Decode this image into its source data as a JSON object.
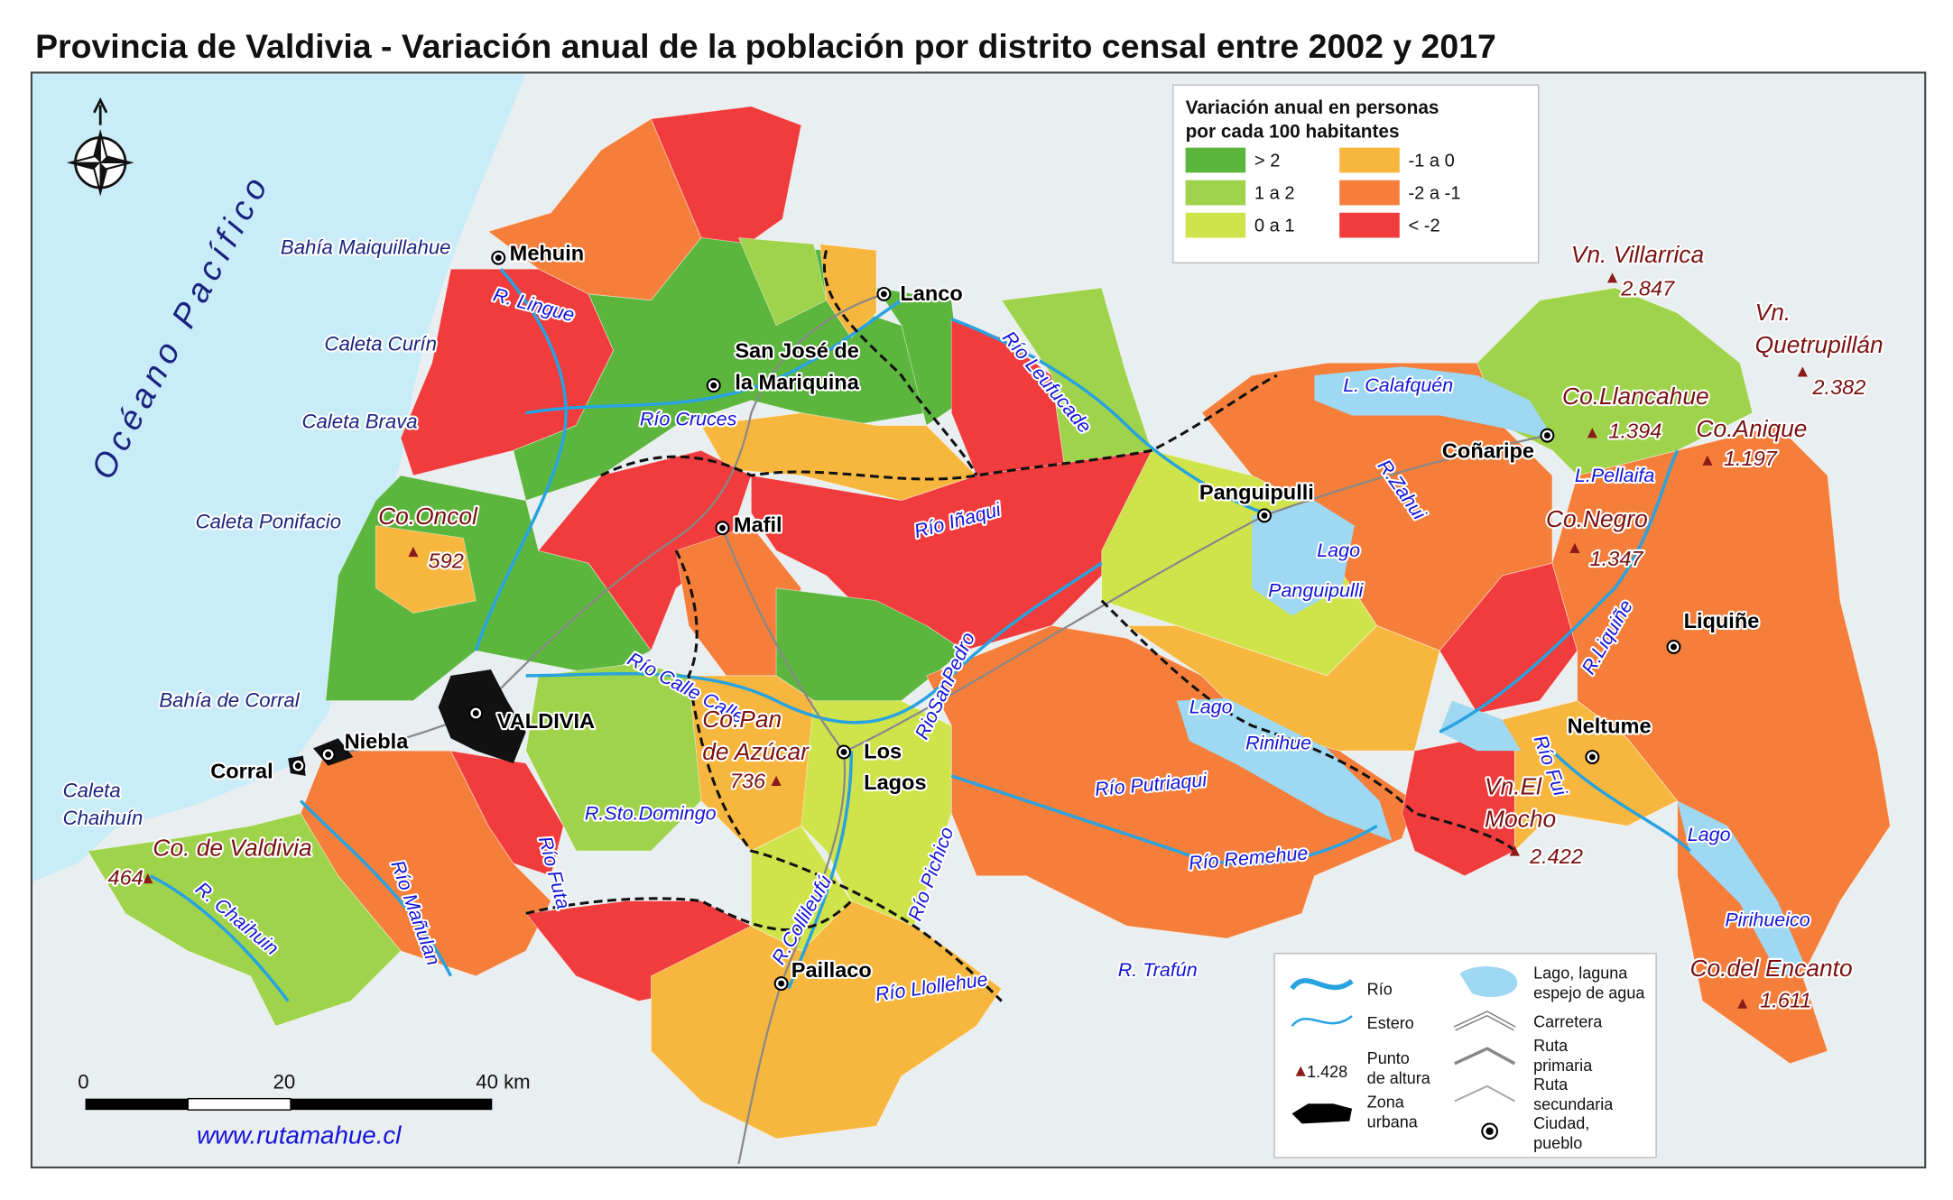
{
  "title": "Provincia de Valdivia - Variación anual de la población por distrito censal entre 2002 y 2017",
  "legend": {
    "title": [
      "Variación anual en personas",
      "por cada 100 habitantes"
    ],
    "items": [
      {
        "label": "> 2",
        "color": "#5cb63e"
      },
      {
        "label": "1  a  2",
        "color": "#9fd34b"
      },
      {
        "label": "0  a  1",
        "color": "#cfe44b"
      },
      {
        "label": "-1  a  0",
        "color": "#f7b73f"
      },
      {
        "label": "-2  a  -1",
        "color": "#f47e3a"
      },
      {
        "label": "< -2",
        "color": "#f03c3c"
      }
    ]
  },
  "ocean": "Océano Pacífico",
  "cities": [
    [
      "Mehuin"
    ],
    [
      "Lanco"
    ],
    [
      "San José de",
      "la Mariquina"
    ],
    [
      "Mafil"
    ],
    [
      "VALDIVIA"
    ],
    [
      "Niebla"
    ],
    [
      "Corral"
    ],
    [
      "Los",
      "Lagos"
    ],
    [
      "Paillaco"
    ],
    [
      "Panguipulli"
    ],
    [
      "Coñaripe"
    ],
    [
      "Liquiñe"
    ],
    [
      "Neltume"
    ]
  ],
  "coast": [
    [
      "Bahía Maiquillahue"
    ],
    [
      "Caleta Curín"
    ],
    [
      "Caleta Brava"
    ],
    [
      "Caleta Ponifacio"
    ],
    [
      "Bahía de Corral"
    ],
    [
      "Caleta",
      "Chaihuín"
    ]
  ],
  "water": [
    "R. Lingue",
    "Río Cruces",
    "Río Leufucade",
    "Río Iñaqui",
    "Río Calle Calle",
    "RioSanPedro",
    "R.Sto.Domingo",
    "Río Futa",
    "Río Putriaqui",
    "Río Remehue",
    "R. Trafún",
    "Río Llollehue",
    "R.Collileufú",
    "Río Pichico",
    "Río Mañulan",
    "R. Chaihuin",
    "L. Calafquén",
    "R.Zahui",
    "L.Pellaifa",
    "Lago",
    "Panguipulli",
    "Lago",
    "Rinihue",
    "Río Fui",
    "Lago",
    "Pirihueico",
    "R.Liquiñe"
  ],
  "peaks": [
    {
      "name": [
        "Vn. Villarrica"
      ],
      "height": "2.847"
    },
    {
      "name": [
        "Vn.",
        "Quetrupillán"
      ],
      "height": "2.382"
    },
    {
      "name": [
        "Co.Llancahue"
      ],
      "height": "1.394"
    },
    {
      "name": [
        "Co.Anique"
      ],
      "height": "1.197"
    },
    {
      "name": [
        "Co.Negro"
      ],
      "height": "1.347"
    },
    {
      "name": [
        "Co.Oncol"
      ],
      "height": "592"
    },
    {
      "name": [
        "Co.Pan",
        "de Azúcar"
      ],
      "height": "736"
    },
    {
      "name": [
        "Vn.El",
        "Mocho"
      ],
      "height": "2.422"
    },
    {
      "name": [
        "Co. de Valdivia"
      ],
      "height": "464"
    },
    {
      "name": [
        "Co.del Encanto"
      ],
      "height": "1.611"
    }
  ],
  "key": {
    "river": "Río",
    "stream": "Estero",
    "peak": [
      "Punto",
      "de altura"
    ],
    "peak_example": "1.428",
    "urban": [
      "Zona",
      "urbana"
    ],
    "lake": [
      "Lago, laguna",
      "espejo de agua"
    ],
    "road": "Carretera",
    "primary": [
      "Ruta",
      "primaria"
    ],
    "secondary": [
      "Ruta",
      "secundaria"
    ],
    "city": [
      "Ciudad,",
      "pueblo"
    ]
  },
  "scale": [
    "0",
    "20",
    "40 km"
  ],
  "website": "www.rutamahue.cl"
}
